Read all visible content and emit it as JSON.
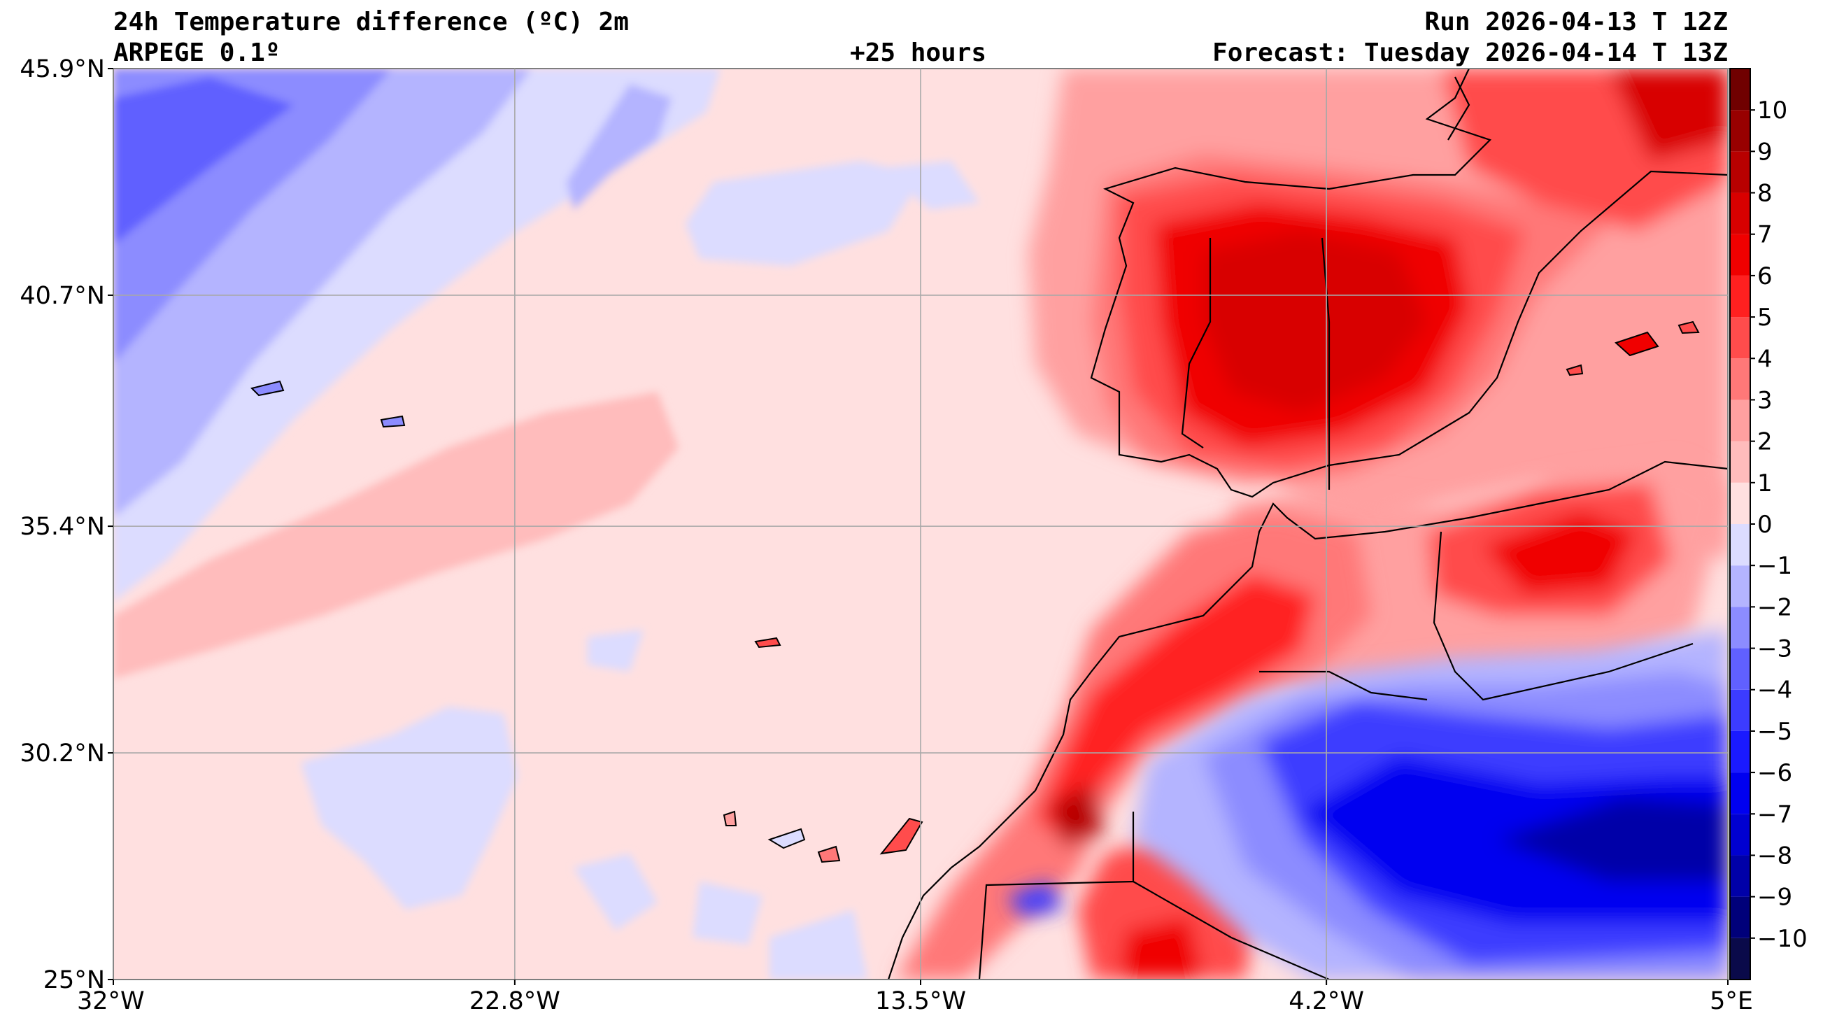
{
  "header": {
    "title": "24h Temperature difference (ºC) 2m",
    "model": "ARPEGE 0.1º",
    "lead": "+25 hours",
    "run": "Run 2026-04-13 T 12Z",
    "forecast": "Forecast: Tuesday 2026-04-14 T 13Z"
  },
  "map": {
    "lon_range": [
      -32,
      5
    ],
    "lat_range": [
      25,
      45.9
    ],
    "lon_ticks": [
      {
        "value": -32,
        "label": "32°W"
      },
      {
        "value": -22.8,
        "label": "22.8°W"
      },
      {
        "value": -13.5,
        "label": "13.5°W"
      },
      {
        "value": -4.2,
        "label": "4.2°W"
      },
      {
        "value": 5,
        "label": "5°E"
      }
    ],
    "lat_ticks": [
      {
        "value": 45.9,
        "label": "45.9°N"
      },
      {
        "value": 40.7,
        "label": "40.7°N"
      },
      {
        "value": 35.4,
        "label": "35.4°N"
      },
      {
        "value": 30.2,
        "label": "30.2°N"
      },
      {
        "value": 25,
        "label": "25°N"
      }
    ],
    "grid": true
  },
  "colorbar": {
    "labels": [
      "10",
      "9",
      "8",
      "7",
      "6",
      "5",
      "4",
      "3",
      "2",
      "1",
      "0",
      "−1",
      "−2",
      "−3",
      "−4",
      "−5",
      "−6",
      "−7",
      "−8",
      "−9",
      "−10"
    ],
    "levels": [
      -11,
      -10,
      -9,
      -8,
      -7,
      -6,
      -5,
      -4,
      -3,
      -2,
      -1,
      0,
      1,
      2,
      3,
      4,
      5,
      6,
      7,
      8,
      9,
      10,
      11
    ],
    "colors": [
      "#0a0a4a",
      "#00007a",
      "#0000a8",
      "#0000d0",
      "#0000f0",
      "#1a1aff",
      "#3c3cff",
      "#6060ff",
      "#8c8cff",
      "#b4b4ff",
      "#dcdcff",
      "#ffe0e0",
      "#ffbcbc",
      "#ffa0a0",
      "#ff7878",
      "#ff4c4c",
      "#ff2020",
      "#f00000",
      "#d80000",
      "#b80000",
      "#980000",
      "#700000"
    ]
  }
}
